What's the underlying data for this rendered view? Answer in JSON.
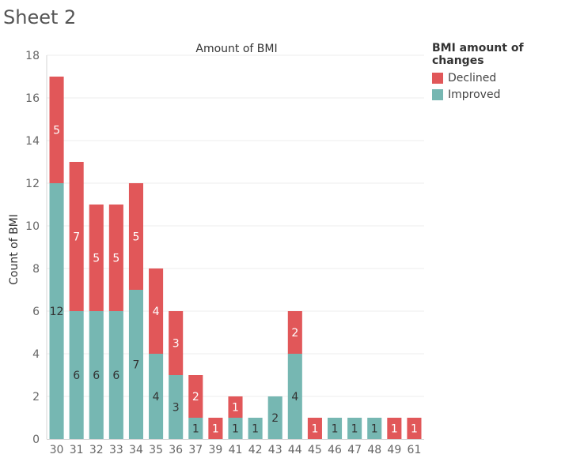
{
  "sheet": {
    "title": "Sheet 2"
  },
  "legend": {
    "title": "BMI amount of changes",
    "items": [
      {
        "label": "Declined",
        "color": "#E15759"
      },
      {
        "label": "Improved",
        "color": "#76B7B2"
      }
    ]
  },
  "chart_data": {
    "type": "bar",
    "stacked": true,
    "title": "Amount of BMI",
    "xlabel": "",
    "ylabel": "Count of BMI",
    "ylim": [
      0,
      18
    ],
    "yticks": [
      0,
      2,
      4,
      6,
      8,
      10,
      12,
      14,
      16,
      18
    ],
    "grid": true,
    "legend_position": "top-right",
    "categories": [
      "30",
      "31",
      "32",
      "33",
      "34",
      "35",
      "36",
      "37",
      "39",
      "41",
      "42",
      "43",
      "44",
      "45",
      "46",
      "47",
      "48",
      "49",
      "61"
    ],
    "series": [
      {
        "name": "Improved",
        "color": "#76B7B2",
        "label_color": "#333333",
        "values": [
          12,
          6,
          6,
          6,
          7,
          4,
          3,
          1,
          0,
          1,
          1,
          2,
          4,
          0,
          1,
          1,
          1,
          0,
          0
        ]
      },
      {
        "name": "Declined",
        "color": "#E15759",
        "label_color": "#ffffff",
        "values": [
          5,
          7,
          5,
          5,
          5,
          4,
          3,
          2,
          1,
          1,
          0,
          0,
          2,
          1,
          0,
          0,
          0,
          1,
          1
        ]
      }
    ]
  }
}
